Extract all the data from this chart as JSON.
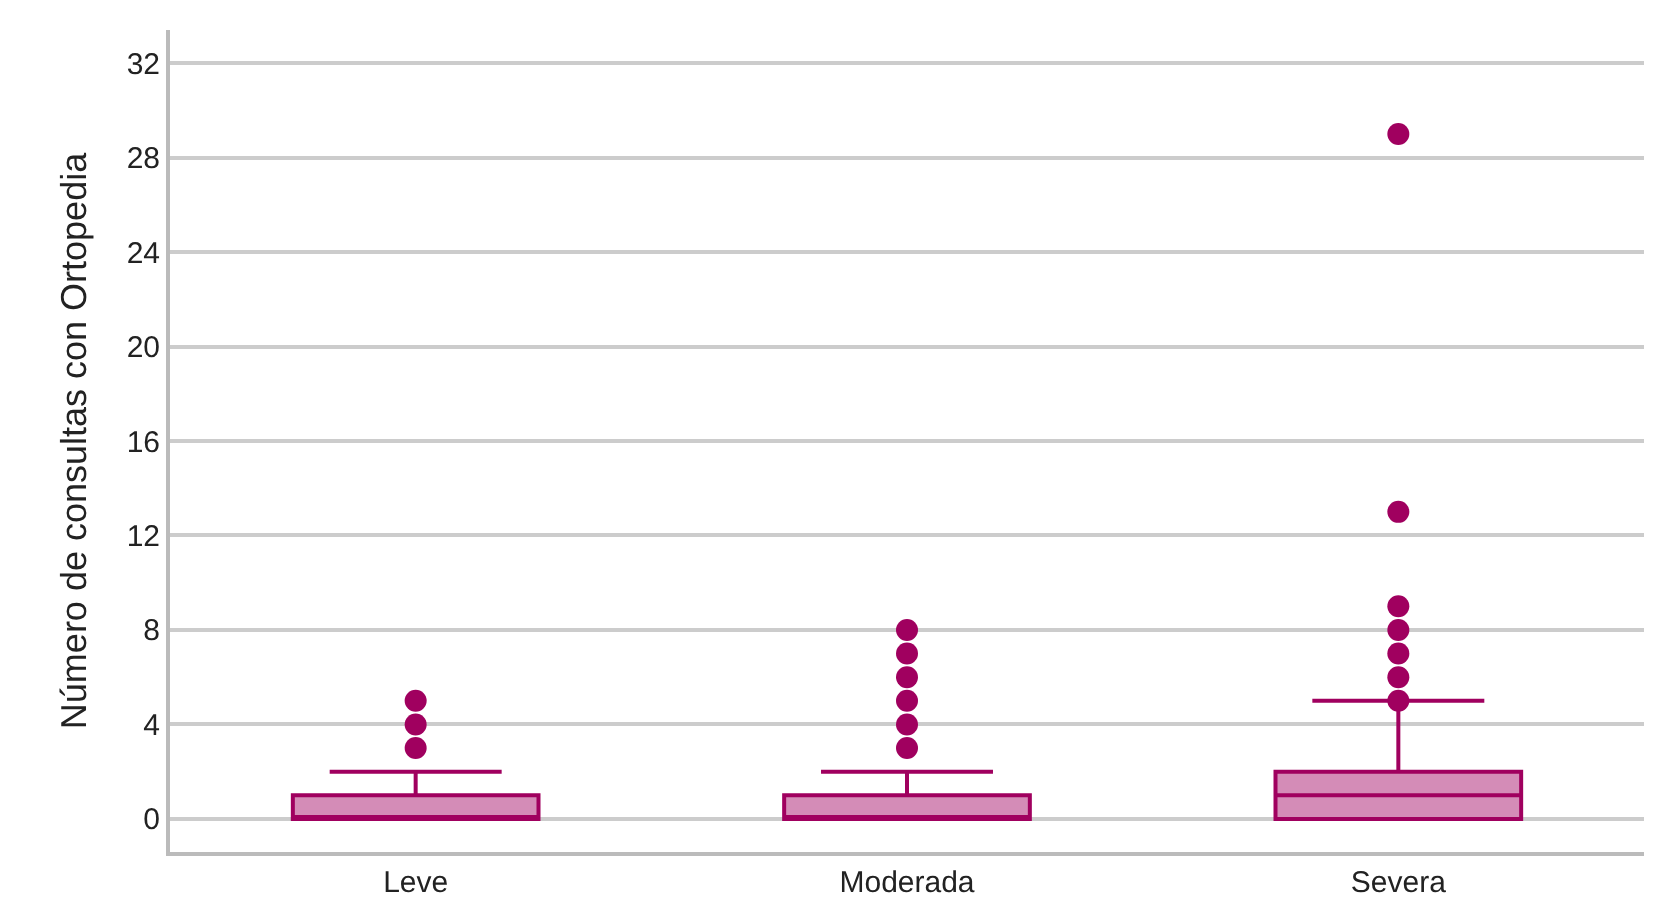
{
  "chart_data": {
    "type": "box",
    "ylabel": "Número de consultas con Ortopedia",
    "categories": [
      "Leve",
      "Moderada",
      "Severa"
    ],
    "boxes": [
      {
        "low": 0,
        "q1": 0,
        "median": 0,
        "q3": 1,
        "high": 2,
        "outliers": [
          3,
          4,
          5
        ]
      },
      {
        "low": 0,
        "q1": 0,
        "median": 0,
        "q3": 1,
        "high": 2,
        "outliers": [
          3,
          4,
          5,
          6,
          7,
          8
        ]
      },
      {
        "low": 0,
        "q1": 0,
        "median": 1,
        "q3": 2,
        "high": 5,
        "outliers": [
          5,
          6,
          7,
          8,
          9,
          13,
          29
        ]
      }
    ],
    "color": "#a0005f",
    "ylim": [
      -1.4,
      33.4
    ],
    "yticks": [
      0,
      4,
      8,
      12,
      16,
      20,
      24,
      28,
      32
    ],
    "grid": "y"
  }
}
